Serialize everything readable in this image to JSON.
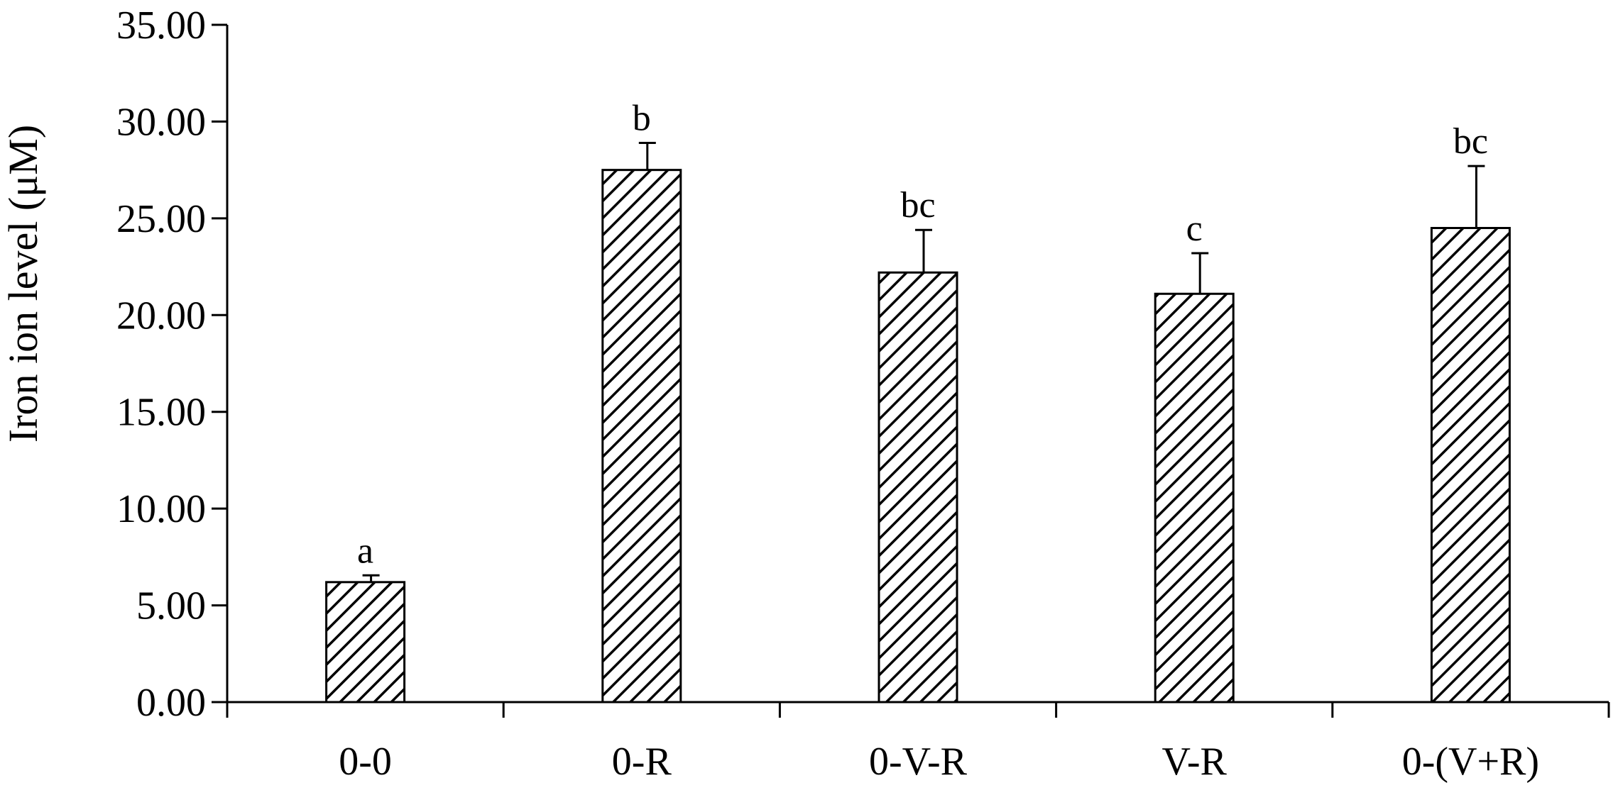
{
  "chart_data": {
    "type": "bar",
    "categories": [
      "0-0",
      "0-R",
      "0-V-R",
      "V-R",
      "0-(V+R)"
    ],
    "values": [
      6.2,
      27.5,
      22.2,
      21.1,
      24.5
    ],
    "error": [
      0.35,
      1.4,
      2.2,
      2.1,
      3.2
    ],
    "significance": [
      "a",
      "b",
      "bc",
      "c",
      "bc"
    ],
    "ylabel": "Iron ion level (μM)",
    "xlabel": "",
    "title": "",
    "ylim": [
      0,
      35
    ],
    "yticks": [
      0,
      5,
      10,
      15,
      20,
      25,
      30,
      35
    ],
    "ytick_labels": [
      "0.00",
      "5.00",
      "10.00",
      "15.00",
      "20.00",
      "25.00",
      "30.00",
      "35.00"
    ],
    "grid": false,
    "bar_fill": "diagonal-hatch",
    "colors": {
      "bar_stroke": "#000000",
      "hatch": "#000000",
      "background": "#ffffff"
    }
  }
}
